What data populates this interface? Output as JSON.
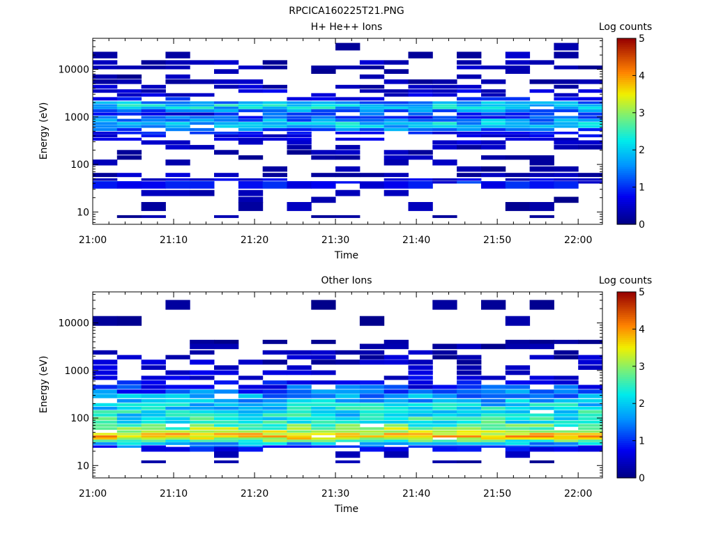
{
  "figure_title": "RPCICA160225T21.PNG",
  "chart_data": [
    {
      "type": "heatmap",
      "title": "H+ He++ Ions",
      "xlabel": "Time",
      "ylabel": "Energy (eV)",
      "x_tick_labels": [
        "21:00",
        "21:10",
        "21:20",
        "21:30",
        "21:40",
        "21:50",
        "22:00"
      ],
      "y_tick_labels": [
        "10",
        "100",
        "1000",
        "10000"
      ],
      "y_scale": "log",
      "ylim": [
        5.5,
        45000
      ],
      "x_range_minutes": [
        0,
        63
      ],
      "colorbar": {
        "label": "Log counts",
        "ticks": [
          "0",
          "1",
          "2",
          "3",
          "4",
          "5"
        ],
        "range": [
          0,
          5
        ],
        "colormap": "rainbow"
      },
      "time_bins": [
        "21:00",
        "21:03",
        "21:06",
        "21:09",
        "21:12",
        "21:15",
        "21:18",
        "21:21",
        "21:24",
        "21:27",
        "21:30",
        "21:33",
        "21:36",
        "21:39",
        "21:42",
        "21:45",
        "21:48",
        "21:51",
        "21:54",
        "21:57",
        "22:00"
      ],
      "profile": [
        [
          30000,
          0.2
        ],
        [
          20000,
          0.25
        ],
        [
          14000,
          0.3
        ],
        [
          11000,
          0.3
        ],
        [
          9000,
          0.25
        ],
        [
          7000,
          0.3
        ],
        [
          5500,
          0.35
        ],
        [
          4300,
          0.4
        ],
        [
          3500,
          0.55
        ],
        [
          2900,
          0.6
        ],
        [
          2400,
          0.8
        ],
        [
          2000,
          1.6
        ],
        [
          1750,
          2.1
        ],
        [
          1550,
          2.0
        ],
        [
          1350,
          1.4
        ],
        [
          1150,
          1.0
        ],
        [
          980,
          1.2
        ],
        [
          850,
          1.6
        ],
        [
          730,
          1.9
        ],
        [
          630,
          1.8
        ],
        [
          540,
          1.3
        ],
        [
          460,
          0.8
        ],
        [
          400,
          0.6
        ],
        [
          340,
          0.5
        ],
        [
          290,
          0.4
        ],
        [
          230,
          0.3
        ],
        [
          180,
          0.25
        ],
        [
          140,
          0.2
        ],
        [
          110,
          0.2
        ],
        [
          80,
          0.15
        ],
        [
          60,
          0.35
        ],
        [
          48,
          0.6
        ],
        [
          42,
          1.0
        ],
        [
          37,
          0.8
        ],
        [
          25,
          0.2
        ],
        [
          18,
          0.15
        ],
        [
          13,
          0.2
        ],
        [
          8,
          0.15
        ]
      ]
    },
    {
      "type": "heatmap",
      "title": "Other Ions",
      "xlabel": "Time",
      "ylabel": "Energy (eV)",
      "x_tick_labels": [
        "21:00",
        "21:10",
        "21:20",
        "21:30",
        "21:40",
        "21:50",
        "22:00"
      ],
      "y_tick_labels": [
        "10",
        "100",
        "1000",
        "10000"
      ],
      "y_scale": "log",
      "ylim": [
        5.5,
        45000
      ],
      "x_range_minutes": [
        0,
        63
      ],
      "colorbar": {
        "label": "Log counts",
        "ticks": [
          "0",
          "1",
          "2",
          "3",
          "4",
          "5"
        ],
        "range": [
          0,
          5
        ],
        "colormap": "rainbow"
      },
      "time_bins": [
        "21:00",
        "21:03",
        "21:06",
        "21:09",
        "21:12",
        "21:15",
        "21:18",
        "21:21",
        "21:24",
        "21:27",
        "21:30",
        "21:33",
        "21:36",
        "21:39",
        "21:42",
        "21:45",
        "21:48",
        "21:51",
        "21:54",
        "21:57",
        "22:00"
      ],
      "profile": [
        [
          24000,
          0.1
        ],
        [
          11000,
          0.1
        ],
        [
          4000,
          0.2
        ],
        [
          3200,
          0.25
        ],
        [
          2400,
          0.3
        ],
        [
          1900,
          0.35
        ],
        [
          1500,
          0.4
        ],
        [
          1150,
          0.45
        ],
        [
          900,
          0.5
        ],
        [
          700,
          0.6
        ],
        [
          560,
          0.8
        ],
        [
          450,
          1.0
        ],
        [
          360,
          1.3
        ],
        [
          290,
          1.6
        ],
        [
          230,
          1.9
        ],
        [
          190,
          2.0
        ],
        [
          160,
          2.1
        ],
        [
          135,
          2.2
        ],
        [
          115,
          2.2
        ],
        [
          97,
          2.3
        ],
        [
          82,
          2.4
        ],
        [
          70,
          2.6
        ],
        [
          60,
          2.9
        ],
        [
          52,
          3.1
        ],
        [
          46,
          3.5
        ],
        [
          41,
          3.8
        ],
        [
          37,
          3.4
        ],
        [
          33,
          2.6
        ],
        [
          29,
          1.8
        ],
        [
          25,
          1.2
        ],
        [
          22,
          0.8
        ],
        [
          17,
          0.2
        ],
        [
          12,
          0.15
        ]
      ]
    }
  ]
}
